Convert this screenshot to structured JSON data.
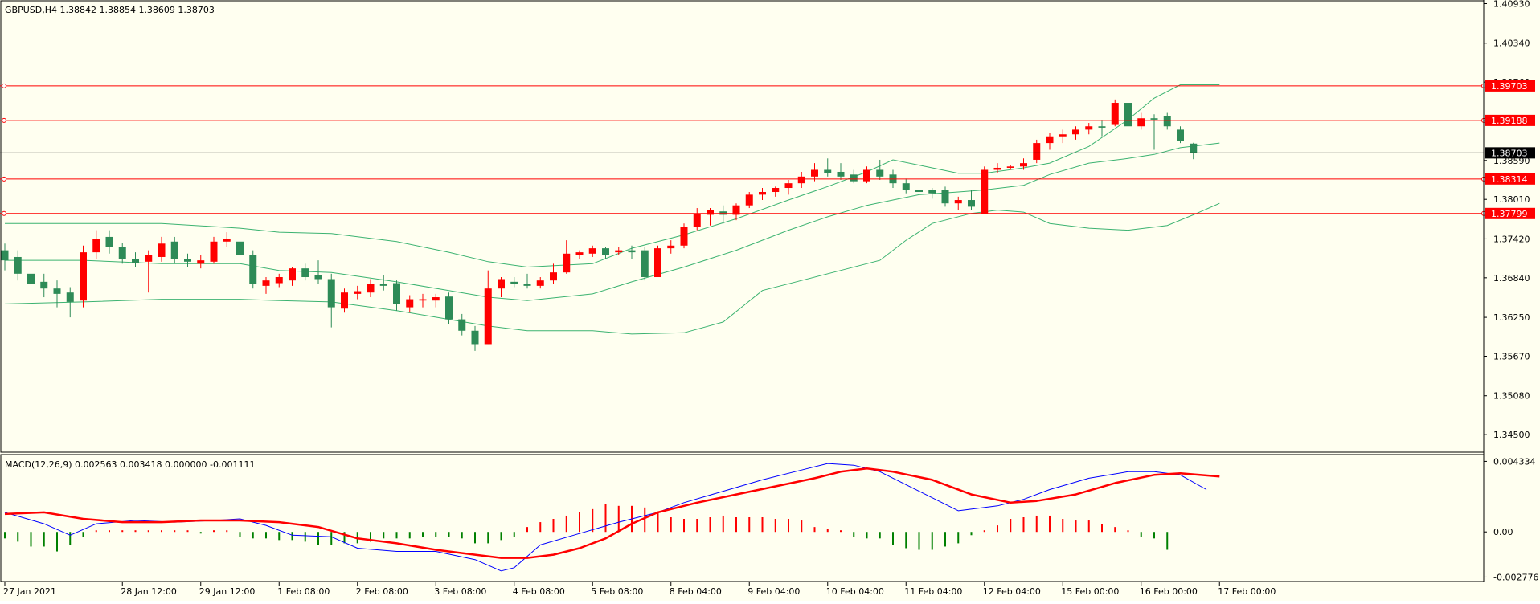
{
  "header": {
    "main_info": "GBPUSD,H4  1.38842 1.38854 1.38609 1.38703",
    "macd_info": "MACD(12,26,9) 0.002563 0.003418 0.000000 -0.001111"
  },
  "colors": {
    "background": "#fffff0",
    "bull_candle": "#ff0000",
    "bear_candle": "#2e8b57",
    "bands": "#3cb371",
    "level_line": "#ff0000",
    "current_price_line": "#000000",
    "macd_main": "#0000ff",
    "macd_signal": "#ff0000",
    "histogram_positive": "#ff0000",
    "histogram_negative": "#008000"
  },
  "chart_data": {
    "type": "candlestick",
    "symbol": "GBPUSD",
    "timeframe": "H4",
    "ohlc": {
      "open": 1.38842,
      "high": 1.38854,
      "low": 1.38609,
      "close": 1.38703
    },
    "price_axis_ticks": [
      "1.40930",
      "1.40340",
      "1.39760",
      "1.39190",
      "1.38590",
      "1.38010",
      "1.37420",
      "1.36840",
      "1.36250",
      "1.35670",
      "1.35080",
      "1.34500"
    ],
    "ylim": [
      1.3425,
      1.4096
    ],
    "x_axis_labels": [
      {
        "label": "27 Jan 2021",
        "bar": 0
      },
      {
        "label": "28 Jan 12:00",
        "bar": 9
      },
      {
        "label": "29 Jan 12:00",
        "bar": 15
      },
      {
        "label": "1 Feb 08:00",
        "bar": 21
      },
      {
        "label": "2 Feb 08:00",
        "bar": 27
      },
      {
        "label": "3 Feb 08:00",
        "bar": 33
      },
      {
        "label": "4 Feb 08:00",
        "bar": 39
      },
      {
        "label": "5 Feb 08:00",
        "bar": 45
      },
      {
        "label": "8 Feb 04:00",
        "bar": 51
      },
      {
        "label": "9 Feb 04:00",
        "bar": 57
      },
      {
        "label": "10 Feb 04:00",
        "bar": 63
      },
      {
        "label": "11 Feb 04:00",
        "bar": 69
      },
      {
        "label": "12 Feb 04:00",
        "bar": 75
      },
      {
        "label": "15 Feb 00:00",
        "bar": 81
      },
      {
        "label": "16 Feb 00:00",
        "bar": 87
      },
      {
        "label": "17 Feb 00:00",
        "bar": 93
      }
    ],
    "levels": [
      {
        "value": 1.39703,
        "label": "1.39703"
      },
      {
        "value": 1.39188,
        "label": "1.39188"
      },
      {
        "value": 1.38314,
        "label": "1.38314"
      },
      {
        "value": 1.37799,
        "label": "1.37799"
      }
    ],
    "current_price": {
      "value": 1.38703,
      "label": "1.38703"
    },
    "candles": [
      [
        1.3725,
        1.3735,
        1.3695,
        1.371
      ],
      [
        1.3715,
        1.3725,
        1.368,
        1.369
      ],
      [
        1.369,
        1.3705,
        1.367,
        1.3675
      ],
      [
        1.3678,
        1.369,
        1.3655,
        1.3668
      ],
      [
        1.3668,
        1.368,
        1.364,
        1.366
      ],
      [
        1.3662,
        1.367,
        1.3625,
        1.3648
      ],
      [
        1.365,
        1.3732,
        1.364,
        1.3722
      ],
      [
        1.3722,
        1.3755,
        1.3712,
        1.3742
      ],
      [
        1.3745,
        1.3755,
        1.372,
        1.373
      ],
      [
        1.373,
        1.3736,
        1.3705,
        1.3712
      ],
      [
        1.3712,
        1.3722,
        1.37,
        1.3706
      ],
      [
        1.3708,
        1.3725,
        1.3662,
        1.3718
      ],
      [
        1.3715,
        1.3745,
        1.3708,
        1.3735
      ],
      [
        1.3738,
        1.3745,
        1.3705,
        1.3712
      ],
      [
        1.3712,
        1.372,
        1.37,
        1.3708
      ],
      [
        1.3705,
        1.3718,
        1.3698,
        1.371
      ],
      [
        1.3708,
        1.3745,
        1.3705,
        1.3738
      ],
      [
        1.3738,
        1.3752,
        1.373,
        1.3742
      ],
      [
        1.3738,
        1.376,
        1.371,
        1.3718
      ],
      [
        1.3718,
        1.3725,
        1.3668,
        1.3675
      ],
      [
        1.3672,
        1.3685,
        1.366,
        1.368
      ],
      [
        1.3676,
        1.369,
        1.367,
        1.3685
      ],
      [
        1.368,
        1.37,
        1.3672,
        1.3698
      ],
      [
        1.3698,
        1.3705,
        1.368,
        1.3685
      ],
      [
        1.3688,
        1.371,
        1.3675,
        1.3682
      ],
      [
        1.3682,
        1.369,
        1.361,
        1.364
      ],
      [
        1.3638,
        1.3668,
        1.3632,
        1.3662
      ],
      [
        1.366,
        1.3672,
        1.3652,
        1.3664
      ],
      [
        1.3662,
        1.3682,
        1.3655,
        1.3675
      ],
      [
        1.3675,
        1.3688,
        1.3665,
        1.3672
      ],
      [
        1.3676,
        1.368,
        1.3635,
        1.3645
      ],
      [
        1.364,
        1.3658,
        1.3632,
        1.3652
      ],
      [
        1.365,
        1.366,
        1.364,
        1.3652
      ],
      [
        1.365,
        1.366,
        1.364,
        1.3655
      ],
      [
        1.3656,
        1.3662,
        1.3615,
        1.3622
      ],
      [
        1.3622,
        1.363,
        1.3598,
        1.3605
      ],
      [
        1.3605,
        1.3612,
        1.3575,
        1.3585
      ],
      [
        1.3585,
        1.3695,
        1.3585,
        1.3668
      ],
      [
        1.3668,
        1.3685,
        1.3655,
        1.3682
      ],
      [
        1.3678,
        1.3685,
        1.367,
        1.3675
      ],
      [
        1.3675,
        1.369,
        1.3668,
        1.3672
      ],
      [
        1.3672,
        1.3685,
        1.3668,
        1.368
      ],
      [
        1.368,
        1.3705,
        1.3675,
        1.3692
      ],
      [
        1.3692,
        1.374,
        1.369,
        1.372
      ],
      [
        1.3718,
        1.3725,
        1.3712,
        1.3722
      ],
      [
        1.372,
        1.3732,
        1.3715,
        1.3728
      ],
      [
        1.3728,
        1.373,
        1.3712,
        1.3718
      ],
      [
        1.3722,
        1.373,
        1.3718,
        1.3725
      ],
      [
        1.3725,
        1.3732,
        1.3712,
        1.3722
      ],
      [
        1.3725,
        1.373,
        1.368,
        1.3685
      ],
      [
        1.3685,
        1.3732,
        1.3685,
        1.3728
      ],
      [
        1.3728,
        1.374,
        1.372,
        1.3732
      ],
      [
        1.3732,
        1.3765,
        1.3728,
        1.376
      ],
      [
        1.376,
        1.3788,
        1.3755,
        1.378
      ],
      [
        1.3778,
        1.3788,
        1.3762,
        1.3785
      ],
      [
        1.3783,
        1.3792,
        1.3765,
        1.3778
      ],
      [
        1.3778,
        1.3795,
        1.377,
        1.3792
      ],
      [
        1.3792,
        1.3812,
        1.3788,
        1.3808
      ],
      [
        1.3808,
        1.3818,
        1.38,
        1.3812
      ],
      [
        1.3812,
        1.382,
        1.3805,
        1.3818
      ],
      [
        1.3818,
        1.383,
        1.3808,
        1.3825
      ],
      [
        1.3825,
        1.3842,
        1.3818,
        1.3835
      ],
      [
        1.3835,
        1.3855,
        1.3828,
        1.3845
      ],
      [
        1.3845,
        1.3862,
        1.3835,
        1.384
      ],
      [
        1.3842,
        1.3855,
        1.383,
        1.3835
      ],
      [
        1.3838,
        1.3845,
        1.3825,
        1.3828
      ],
      [
        1.3828,
        1.385,
        1.3825,
        1.3845
      ],
      [
        1.3845,
        1.386,
        1.383,
        1.3835
      ],
      [
        1.3838,
        1.3845,
        1.3818,
        1.3825
      ],
      [
        1.3825,
        1.3832,
        1.381,
        1.3815
      ],
      [
        1.3815,
        1.383,
        1.3808,
        1.3812
      ],
      [
        1.3815,
        1.3818,
        1.3802,
        1.381
      ],
      [
        1.3815,
        1.382,
        1.379,
        1.3795
      ],
      [
        1.3795,
        1.3805,
        1.3785,
        1.38
      ],
      [
        1.38,
        1.3815,
        1.3785,
        1.379
      ],
      [
        1.378,
        1.385,
        1.378,
        1.3845
      ],
      [
        1.3845,
        1.3855,
        1.384,
        1.3848
      ],
      [
        1.3848,
        1.3852,
        1.3845,
        1.385
      ],
      [
        1.385,
        1.3862,
        1.3845,
        1.3855
      ],
      [
        1.386,
        1.389,
        1.3855,
        1.3885
      ],
      [
        1.3885,
        1.39,
        1.3875,
        1.3895
      ],
      [
        1.3895,
        1.3905,
        1.3885,
        1.3898
      ],
      [
        1.3898,
        1.391,
        1.389,
        1.3905
      ],
      [
        1.3905,
        1.3915,
        1.3898,
        1.391
      ],
      [
        1.391,
        1.3918,
        1.3895,
        1.3908
      ],
      [
        1.3912,
        1.395,
        1.391,
        1.3945
      ],
      [
        1.3945,
        1.3952,
        1.3905,
        1.391
      ],
      [
        1.391,
        1.393,
        1.3905,
        1.3922
      ],
      [
        1.3922,
        1.3928,
        1.3875,
        1.392
      ],
      [
        1.3925,
        1.393,
        1.3905,
        1.391
      ],
      [
        1.3905,
        1.391,
        1.3885,
        1.3888
      ],
      [
        1.38842,
        1.38854,
        1.38609,
        1.38703
      ]
    ],
    "bollinger": {
      "upper": [
        [
          0,
          1.3765
        ],
        [
          6,
          1.3765
        ],
        [
          12,
          1.3765
        ],
        [
          18,
          1.3758
        ],
        [
          21,
          1.3752
        ],
        [
          25,
          1.375
        ],
        [
          30,
          1.3738
        ],
        [
          34,
          1.3722
        ],
        [
          37,
          1.3708
        ],
        [
          40,
          1.37
        ],
        [
          45,
          1.3705
        ],
        [
          48,
          1.3728
        ],
        [
          52,
          1.3748
        ],
        [
          56,
          1.3772
        ],
        [
          60,
          1.38
        ],
        [
          63,
          1.382
        ],
        [
          66,
          1.3842
        ],
        [
          68,
          1.386
        ],
        [
          70,
          1.3852
        ],
        [
          73,
          1.384
        ],
        [
          75,
          1.384
        ],
        [
          78,
          1.3848
        ],
        [
          80,
          1.3855
        ],
        [
          83,
          1.388
        ],
        [
          86,
          1.392
        ],
        [
          88,
          1.3952
        ],
        [
          90,
          1.3972
        ],
        [
          93,
          1.3972
        ]
      ],
      "middle": [
        [
          0,
          1.371
        ],
        [
          6,
          1.371
        ],
        [
          12,
          1.3705
        ],
        [
          18,
          1.3705
        ],
        [
          21,
          1.3695
        ],
        [
          25,
          1.3692
        ],
        [
          30,
          1.3678
        ],
        [
          34,
          1.3665
        ],
        [
          37,
          1.3655
        ],
        [
          40,
          1.365
        ],
        [
          45,
          1.366
        ],
        [
          48,
          1.3678
        ],
        [
          52,
          1.37
        ],
        [
          56,
          1.3725
        ],
        [
          60,
          1.3755
        ],
        [
          63,
          1.3775
        ],
        [
          66,
          1.3792
        ],
        [
          68,
          1.38
        ],
        [
          70,
          1.3808
        ],
        [
          73,
          1.3812
        ],
        [
          75,
          1.3815
        ],
        [
          78,
          1.3822
        ],
        [
          80,
          1.3838
        ],
        [
          83,
          1.3855
        ],
        [
          86,
          1.3862
        ],
        [
          88,
          1.3868
        ],
        [
          90,
          1.3878
        ],
        [
          93,
          1.3885
        ]
      ],
      "lower": [
        [
          0,
          1.3645
        ],
        [
          6,
          1.3648
        ],
        [
          12,
          1.3652
        ],
        [
          18,
          1.3652
        ],
        [
          21,
          1.365
        ],
        [
          25,
          1.3648
        ],
        [
          30,
          1.3635
        ],
        [
          34,
          1.3622
        ],
        [
          37,
          1.3612
        ],
        [
          40,
          1.3605
        ],
        [
          45,
          1.3605
        ],
        [
          48,
          1.36
        ],
        [
          52,
          1.3602
        ],
        [
          55,
          1.3618
        ],
        [
          58,
          1.3665
        ],
        [
          61,
          1.368
        ],
        [
          64,
          1.3695
        ],
        [
          67,
          1.371
        ],
        [
          69,
          1.374
        ],
        [
          71,
          1.3765
        ],
        [
          74,
          1.378
        ],
        [
          76,
          1.3785
        ],
        [
          78,
          1.3782
        ],
        [
          80,
          1.3765
        ],
        [
          83,
          1.3758
        ],
        [
          86,
          1.3755
        ],
        [
          89,
          1.3762
        ],
        [
          91,
          1.3778
        ],
        [
          93,
          1.3795
        ]
      ]
    },
    "macd": {
      "label": "MACD(12,26,9)",
      "values": {
        "main": 0.002563,
        "signal": 0.003418,
        "zero": 0.0,
        "histogram": -0.001111
      },
      "axis_ticks": [
        "0.004334",
        "0.00",
        "-0.002776"
      ],
      "ylim": [
        -0.003,
        0.0047
      ],
      "main_line": [
        [
          0,
          0.0012
        ],
        [
          3,
          0.0005
        ],
        [
          5,
          -0.0002
        ],
        [
          7,
          0.0005
        ],
        [
          10,
          0.0007
        ],
        [
          13,
          0.0006
        ],
        [
          16,
          0.0007
        ],
        [
          18,
          0.0008
        ],
        [
          20,
          0.0004
        ],
        [
          22,
          -0.0002
        ],
        [
          25,
          -0.0003
        ],
        [
          27,
          -0.001
        ],
        [
          30,
          -0.0012
        ],
        [
          33,
          -0.0012
        ],
        [
          36,
          -0.0017
        ],
        [
          38,
          -0.0024
        ],
        [
          39,
          -0.0022
        ],
        [
          41,
          -0.0008
        ],
        [
          44,
          -0.0001
        ],
        [
          47,
          0.0006
        ],
        [
          50,
          0.0012
        ],
        [
          52,
          0.0018
        ],
        [
          55,
          0.0025
        ],
        [
          58,
          0.0032
        ],
        [
          61,
          0.0038
        ],
        [
          63,
          0.0042
        ],
        [
          65,
          0.0041
        ],
        [
          67,
          0.0037
        ],
        [
          70,
          0.0025
        ],
        [
          73,
          0.0013
        ],
        [
          76,
          0.0016
        ],
        [
          78,
          0.002
        ],
        [
          80,
          0.0026
        ],
        [
          83,
          0.0033
        ],
        [
          86,
          0.0037
        ],
        [
          88,
          0.0037
        ],
        [
          90,
          0.0035
        ],
        [
          92,
          0.0026
        ]
      ],
      "signal_line": [
        [
          0,
          0.0011
        ],
        [
          3,
          0.0012
        ],
        [
          6,
          0.0008
        ],
        [
          9,
          0.0006
        ],
        [
          12,
          0.0006
        ],
        [
          15,
          0.0007
        ],
        [
          18,
          0.0007
        ],
        [
          21,
          0.0006
        ],
        [
          24,
          0.0003
        ],
        [
          27,
          -0.0004
        ],
        [
          30,
          -0.0007
        ],
        [
          33,
          -0.0011
        ],
        [
          36,
          -0.0014
        ],
        [
          38,
          -0.0016
        ],
        [
          40,
          -0.0016
        ],
        [
          42,
          -0.0014
        ],
        [
          44,
          -0.001
        ],
        [
          46,
          -0.0004
        ],
        [
          48,
          0.0005
        ],
        [
          50,
          0.0012
        ],
        [
          53,
          0.0018
        ],
        [
          56,
          0.0023
        ],
        [
          59,
          0.0028
        ],
        [
          62,
          0.0033
        ],
        [
          64,
          0.0037
        ],
        [
          66,
          0.0039
        ],
        [
          68,
          0.0037
        ],
        [
          71,
          0.0032
        ],
        [
          74,
          0.0023
        ],
        [
          77,
          0.0018
        ],
        [
          79,
          0.0019
        ],
        [
          82,
          0.0023
        ],
        [
          85,
          0.003
        ],
        [
          88,
          0.0035
        ],
        [
          90,
          0.0036
        ],
        [
          93,
          0.0034
        ]
      ],
      "histogram": [
        -0.0004,
        -0.0006,
        -0.0009,
        -0.0009,
        -0.0012,
        -0.0008,
        -0.0003,
        0.0001,
        0.0001,
        0.0001,
        0.0001,
        0.0001,
        0.0001,
        0.0001,
        0.0001,
        -0.0001,
        0.0001,
        0.0001,
        -0.0003,
        -0.0004,
        -0.0004,
        -0.0005,
        -0.0005,
        -0.0006,
        -0.0008,
        -0.0008,
        -0.0007,
        -0.0007,
        -0.0006,
        -0.0004,
        -0.0004,
        -0.0004,
        -0.0003,
        -0.0003,
        -0.0003,
        -0.0004,
        -0.0007,
        -0.0007,
        -0.0005,
        -0.0003,
        0.0003,
        0.0006,
        0.0008,
        0.001,
        0.0012,
        0.0014,
        0.0017,
        0.0016,
        0.0016,
        0.0015,
        0.0012,
        0.0009,
        0.0008,
        0.0008,
        0.0009,
        0.001,
        0.0009,
        0.0009,
        0.0009,
        0.0008,
        0.0008,
        0.0007,
        0.0003,
        0.0002,
        0.0001,
        -0.0003,
        -0.0004,
        -0.0004,
        -0.0008,
        -0.001,
        -0.0011,
        -0.0011,
        -0.0009,
        -0.0007,
        -0.0002,
        0.0001,
        0.0004,
        0.0008,
        0.0009,
        0.001,
        0.001,
        0.0008,
        0.0007,
        0.0007,
        0.0005,
        0.0003,
        0.0001,
        -0.0003,
        -0.0004,
        -0.0011
      ]
    }
  }
}
